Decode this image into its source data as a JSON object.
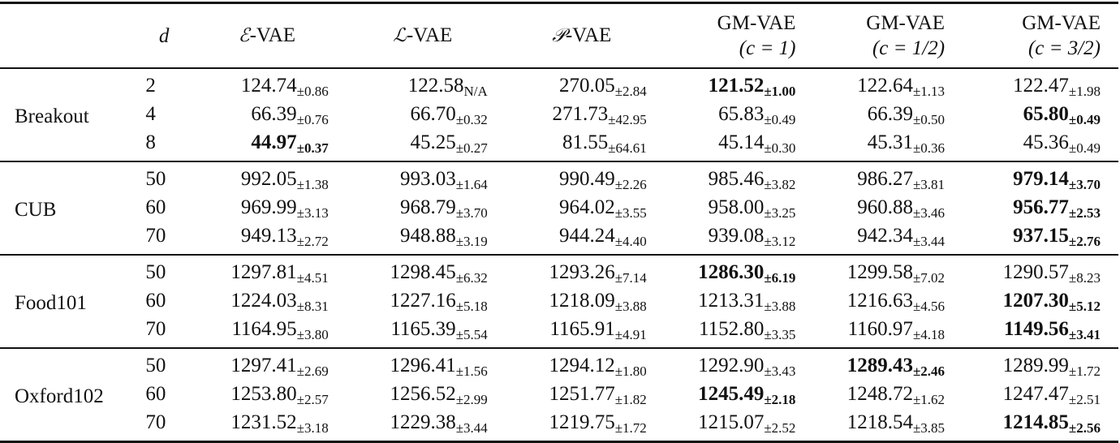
{
  "table": {
    "columns": [
      {
        "key": "dataset",
        "label": ""
      },
      {
        "key": "d",
        "label": "d"
      },
      {
        "key": "e_vae",
        "label": "-VAE",
        "symbol": "ℰ"
      },
      {
        "key": "l_vae",
        "label": "-VAE",
        "symbol": "ℒ"
      },
      {
        "key": "p_vae",
        "label": "-VAE",
        "symbol": "𝒫"
      },
      {
        "key": "gm_vae_1",
        "label": "GM-VAE",
        "sublabel": "(c = 1)"
      },
      {
        "key": "gm_vae_half",
        "label": "GM-VAE",
        "sublabel": "(c = 1/2)"
      },
      {
        "key": "gm_vae_3half",
        "label": "GM-VAE",
        "sublabel": "(c = 3/2)"
      }
    ],
    "groups": [
      {
        "dataset": "Breakout",
        "rows": [
          {
            "d": "2",
            "cells": [
              {
                "mean": "124.74",
                "sd": "±0.86",
                "bold": false
              },
              {
                "mean": "122.58",
                "sd": "N/A",
                "bold": false
              },
              {
                "mean": "270.05",
                "sd": "±2.84",
                "bold": false
              },
              {
                "mean": "121.52",
                "sd": "±1.00",
                "bold": true
              },
              {
                "mean": "122.64",
                "sd": "±1.13",
                "bold": false
              },
              {
                "mean": "122.47",
                "sd": "±1.98",
                "bold": false
              }
            ]
          },
          {
            "d": "4",
            "cells": [
              {
                "mean": "66.39",
                "sd": "±0.76",
                "bold": false
              },
              {
                "mean": "66.70",
                "sd": "±0.32",
                "bold": false
              },
              {
                "mean": "271.73",
                "sd": "±42.95",
                "bold": false
              },
              {
                "mean": "65.83",
                "sd": "±0.49",
                "bold": false
              },
              {
                "mean": "66.39",
                "sd": "±0.50",
                "bold": false
              },
              {
                "mean": "65.80",
                "sd": "±0.49",
                "bold": true
              }
            ]
          },
          {
            "d": "8",
            "cells": [
              {
                "mean": "44.97",
                "sd": "±0.37",
                "bold": true
              },
              {
                "mean": "45.25",
                "sd": "±0.27",
                "bold": false
              },
              {
                "mean": "81.55",
                "sd": "±64.61",
                "bold": false
              },
              {
                "mean": "45.14",
                "sd": "±0.30",
                "bold": false
              },
              {
                "mean": "45.31",
                "sd": "±0.36",
                "bold": false
              },
              {
                "mean": "45.36",
                "sd": "±0.49",
                "bold": false
              }
            ]
          }
        ]
      },
      {
        "dataset": "CUB",
        "rows": [
          {
            "d": "50",
            "cells": [
              {
                "mean": "992.05",
                "sd": "±1.38",
                "bold": false
              },
              {
                "mean": "993.03",
                "sd": "±1.64",
                "bold": false
              },
              {
                "mean": "990.49",
                "sd": "±2.26",
                "bold": false
              },
              {
                "mean": "985.46",
                "sd": "±3.82",
                "bold": false
              },
              {
                "mean": "986.27",
                "sd": "±3.81",
                "bold": false
              },
              {
                "mean": "979.14",
                "sd": "±3.70",
                "bold": true
              }
            ]
          },
          {
            "d": "60",
            "cells": [
              {
                "mean": "969.99",
                "sd": "±3.13",
                "bold": false
              },
              {
                "mean": "968.79",
                "sd": "±3.70",
                "bold": false
              },
              {
                "mean": "964.02",
                "sd": "±3.55",
                "bold": false
              },
              {
                "mean": "958.00",
                "sd": "±3.25",
                "bold": false
              },
              {
                "mean": "960.88",
                "sd": "±3.46",
                "bold": false
              },
              {
                "mean": "956.77",
                "sd": "±2.53",
                "bold": true
              }
            ]
          },
          {
            "d": "70",
            "cells": [
              {
                "mean": "949.13",
                "sd": "±2.72",
                "bold": false
              },
              {
                "mean": "948.88",
                "sd": "±3.19",
                "bold": false
              },
              {
                "mean": "944.24",
                "sd": "±4.40",
                "bold": false
              },
              {
                "mean": "939.08",
                "sd": "±3.12",
                "bold": false
              },
              {
                "mean": "942.34",
                "sd": "±3.44",
                "bold": false
              },
              {
                "mean": "937.15",
                "sd": "±2.76",
                "bold": true
              }
            ]
          }
        ]
      },
      {
        "dataset": "Food101",
        "rows": [
          {
            "d": "50",
            "cells": [
              {
                "mean": "1297.81",
                "sd": "±4.51",
                "bold": false
              },
              {
                "mean": "1298.45",
                "sd": "±6.32",
                "bold": false
              },
              {
                "mean": "1293.26",
                "sd": "±7.14",
                "bold": false
              },
              {
                "mean": "1286.30",
                "sd": "±6.19",
                "bold": true
              },
              {
                "mean": "1299.58",
                "sd": "±7.02",
                "bold": false
              },
              {
                "mean": "1290.57",
                "sd": "±8.23",
                "bold": false
              }
            ]
          },
          {
            "d": "60",
            "cells": [
              {
                "mean": "1224.03",
                "sd": "±8.31",
                "bold": false
              },
              {
                "mean": "1227.16",
                "sd": "±5.18",
                "bold": false
              },
              {
                "mean": "1218.09",
                "sd": "±3.88",
                "bold": false
              },
              {
                "mean": "1213.31",
                "sd": "±3.88",
                "bold": false
              },
              {
                "mean": "1216.63",
                "sd": "±4.56",
                "bold": false
              },
              {
                "mean": "1207.30",
                "sd": "±5.12",
                "bold": true
              }
            ]
          },
          {
            "d": "70",
            "cells": [
              {
                "mean": "1164.95",
                "sd": "±3.80",
                "bold": false
              },
              {
                "mean": "1165.39",
                "sd": "±5.54",
                "bold": false
              },
              {
                "mean": "1165.91",
                "sd": "±4.91",
                "bold": false
              },
              {
                "mean": "1152.80",
                "sd": "±3.35",
                "bold": false
              },
              {
                "mean": "1160.97",
                "sd": "±4.18",
                "bold": false
              },
              {
                "mean": "1149.56",
                "sd": "±3.41",
                "bold": true
              }
            ]
          }
        ]
      },
      {
        "dataset": "Oxford102",
        "rows": [
          {
            "d": "50",
            "cells": [
              {
                "mean": "1297.41",
                "sd": "±2.69",
                "bold": false
              },
              {
                "mean": "1296.41",
                "sd": "±1.56",
                "bold": false
              },
              {
                "mean": "1294.12",
                "sd": "±1.80",
                "bold": false
              },
              {
                "mean": "1292.90",
                "sd": "±3.43",
                "bold": false
              },
              {
                "mean": "1289.43",
                "sd": "±2.46",
                "bold": true
              },
              {
                "mean": "1289.99",
                "sd": "±1.72",
                "bold": false
              }
            ]
          },
          {
            "d": "60",
            "cells": [
              {
                "mean": "1253.80",
                "sd": "±2.57",
                "bold": false
              },
              {
                "mean": "1256.52",
                "sd": "±2.99",
                "bold": false
              },
              {
                "mean": "1251.77",
                "sd": "±1.82",
                "bold": false
              },
              {
                "mean": "1245.49",
                "sd": "±2.18",
                "bold": true
              },
              {
                "mean": "1248.72",
                "sd": "±1.62",
                "bold": false
              },
              {
                "mean": "1247.47",
                "sd": "±2.51",
                "bold": false
              }
            ]
          },
          {
            "d": "70",
            "cells": [
              {
                "mean": "1231.52",
                "sd": "±3.18",
                "bold": false
              },
              {
                "mean": "1229.38",
                "sd": "±3.44",
                "bold": false
              },
              {
                "mean": "1219.75",
                "sd": "±1.72",
                "bold": false
              },
              {
                "mean": "1215.07",
                "sd": "±2.52",
                "bold": false
              },
              {
                "mean": "1218.54",
                "sd": "±3.85",
                "bold": false
              },
              {
                "mean": "1214.85",
                "sd": "±2.56",
                "bold": true
              }
            ]
          }
        ]
      }
    ]
  }
}
